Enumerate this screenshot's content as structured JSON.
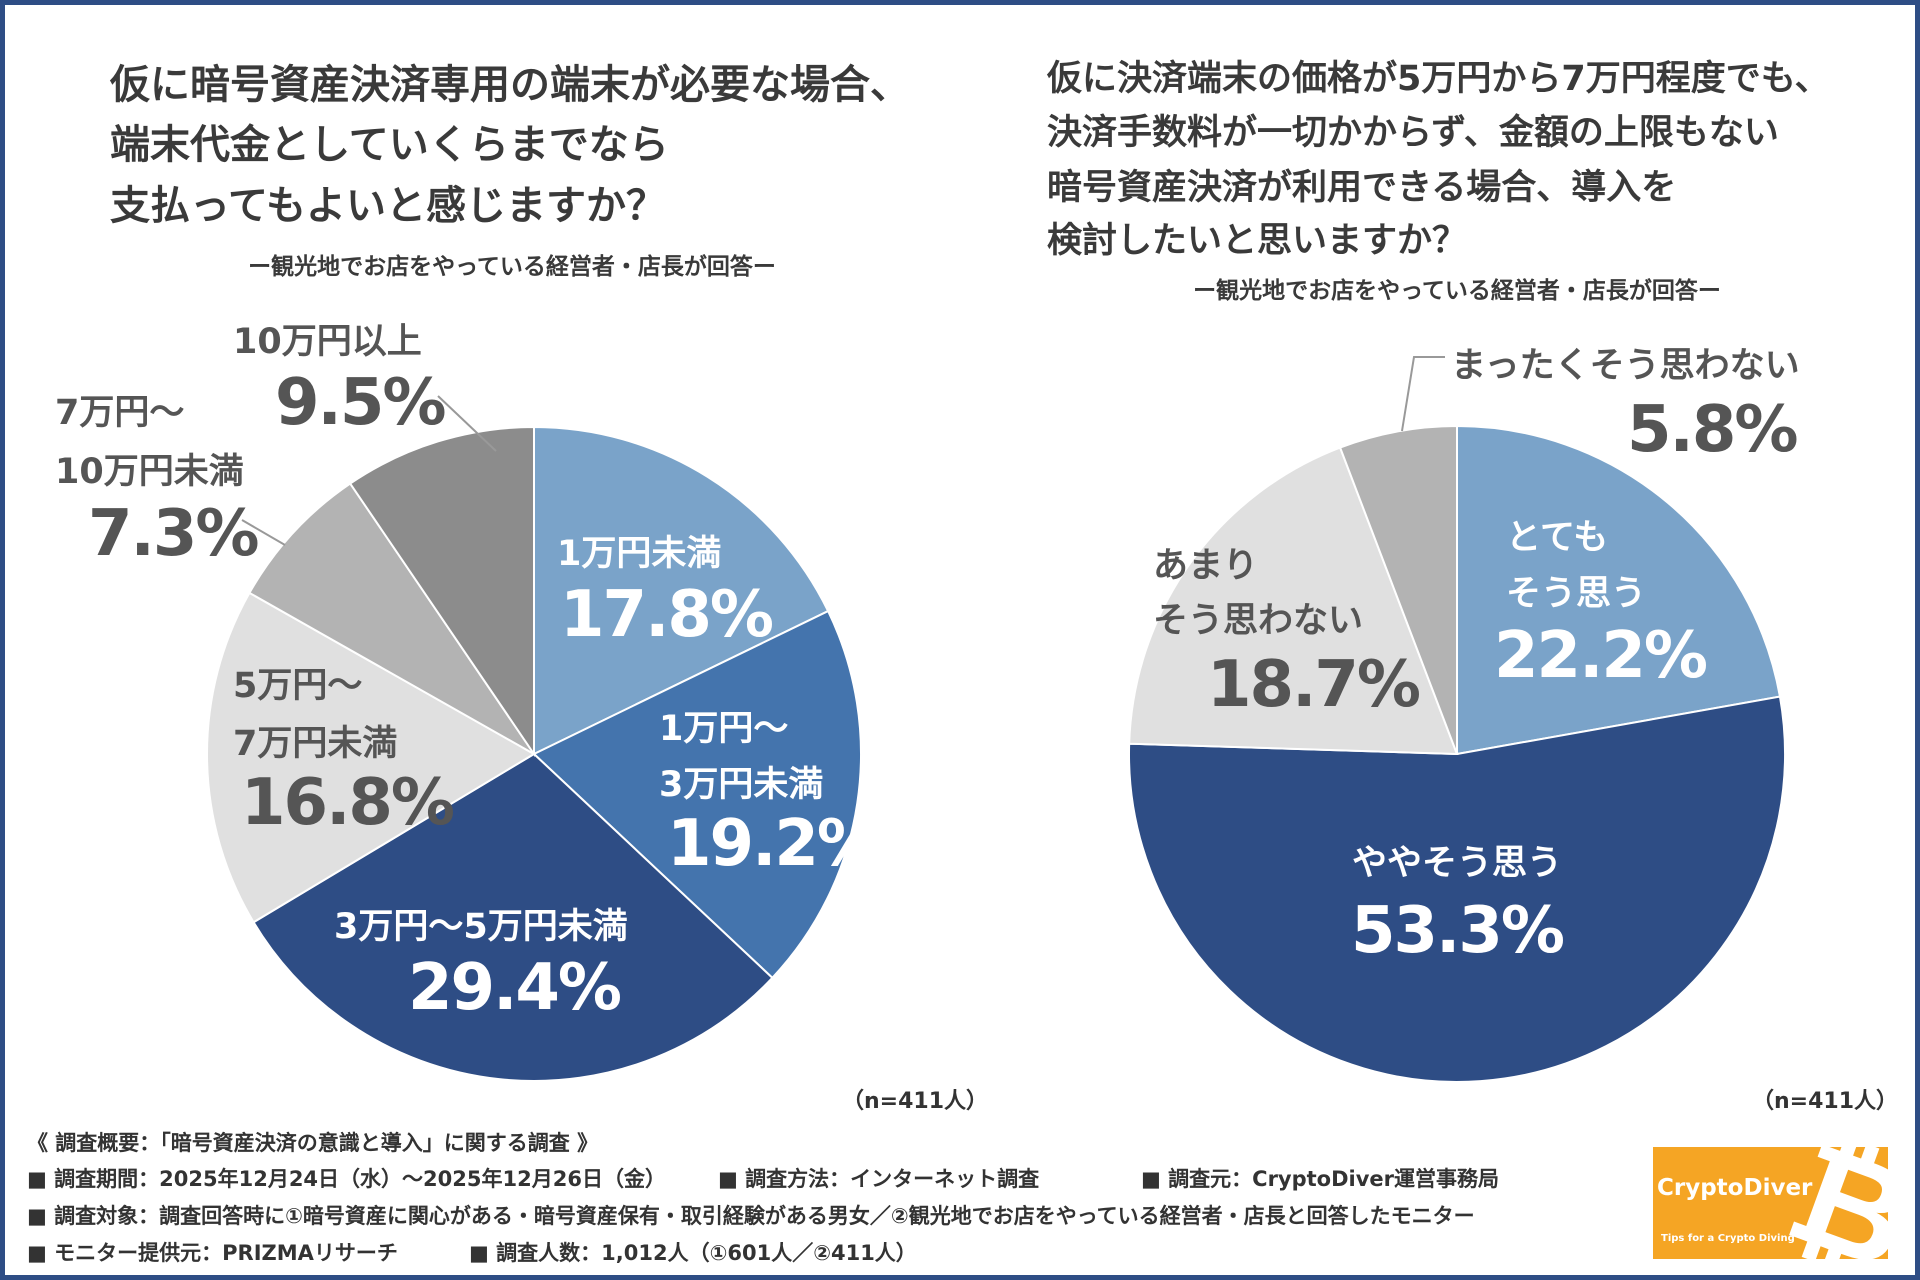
{
  "left": {
    "title": [
      "仮に暗号資産決済専用の端末が必要な場合、",
      "端末代金としていくらまでなら",
      "支払ってもよいと感じますか？"
    ],
    "subtitle": "ー観光地でお店をやっている経営者・店長が回答ー",
    "n": "（n=411人）"
  },
  "right": {
    "title": [
      "仮に決済端末の価格が5万円から7万円程度でも、",
      "決済手数料が一切かからず、金額の上限もない",
      "暗号資産決済が利用できる場合、導入を",
      "検討したいと思いますか？"
    ],
    "subtitle": "ー観光地でお店をやっている経営者・店長が回答ー",
    "n": "（n=411人）"
  },
  "chart_data": [
    {
      "type": "pie",
      "start": "12 o'clock, clockwise",
      "categories": [
        "1万円未満",
        "1万円～3万円未満",
        "3万円～5万円未満",
        "5万円～7万円未満",
        "7万円～10万円未満",
        "10万円以上"
      ],
      "values": [
        17.8,
        19.2,
        29.4,
        16.8,
        7.3,
        9.5
      ],
      "labels": [
        "17.8%",
        "19.2%",
        "29.4%",
        "16.8%",
        "7.3%",
        "9.5%"
      ],
      "colors": [
        "#7aa3c9",
        "#4474ad",
        "#2e4d85",
        "#e0e0e0",
        "#b3b3b3",
        "#8c8c8c"
      ]
    },
    {
      "type": "pie",
      "start": "12 o'clock, clockwise",
      "categories": [
        "とてもそう思う",
        "ややそう思う",
        "あまりそう思わない",
        "まったくそう思わない"
      ],
      "values": [
        22.2,
        53.3,
        18.7,
        5.8
      ],
      "labels": [
        "22.2%",
        "53.3%",
        "18.7%",
        "5.8%"
      ],
      "colors": [
        "#7aa3c9",
        "#2e4d85",
        "#e0e0e0",
        "#b3b3b3"
      ]
    }
  ],
  "left_labels": {
    "a": "1万円未満",
    "b1": "1万円～",
    "b2": "3万円未満",
    "c": "3万円～5万円未満",
    "d1": "5万円～",
    "d2": "7万円未満",
    "e1": "7万円～",
    "e2": "10万円未満",
    "f": "10万円以上"
  },
  "right_labels": {
    "a1": "とても",
    "a2": "そう思う",
    "b": "ややそう思う",
    "c1": "あまり",
    "c2": "そう思わない",
    "d": "まったくそう思わない"
  },
  "footer": {
    "overview": "《 調査概要：「暗号資産決済の意識と導入」に関する調査 》",
    "period": "■ 調査期間：2025年12月24日（水）～2025年12月26日（金）",
    "method": "■ 調査方法：インターネット調査",
    "source": "■ 調査元：CryptoDiver運営事務局",
    "target": "■ 調査対象：調査回答時に①暗号資産に関心がある・暗号資産保有・取引経験がある男女／②観光地でお店をやっている経営者・店長と回答したモニター",
    "provider": "■ モニター提供元：PRIZMAリサーチ",
    "count": "■ 調査人数：1,012人（①601人／②411人）"
  },
  "logo": {
    "name": "CryptoDiver",
    "tagline": "Tips for a Crypto Diving"
  }
}
